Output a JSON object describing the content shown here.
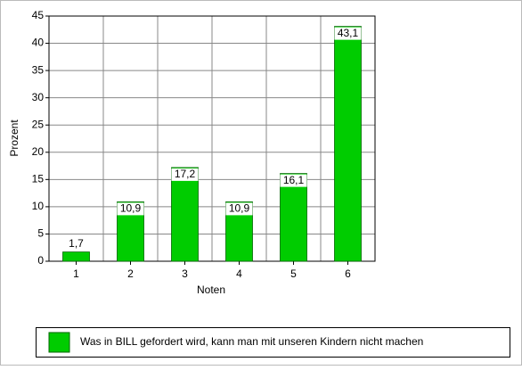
{
  "chart_data": {
    "type": "bar",
    "categories": [
      "1",
      "2",
      "3",
      "4",
      "5",
      "6"
    ],
    "series": [
      {
        "name": "Was in BILL gefordert wird, kann man mit unseren Kindern nicht machen",
        "color": "#00cc00",
        "values": [
          1.7,
          10.9,
          17.2,
          10.9,
          16.1,
          43.1
        ],
        "value_labels": [
          "1,7",
          "10,9",
          "17,2",
          "10,9",
          "16,1",
          "43,1"
        ]
      }
    ],
    "xlabel": "Noten",
    "ylabel": "Prozent",
    "ylim": [
      0,
      45
    ],
    "yticks": [
      0,
      5,
      10,
      15,
      20,
      25,
      30,
      35,
      40,
      45
    ],
    "grid": true,
    "legend": "bottom"
  }
}
